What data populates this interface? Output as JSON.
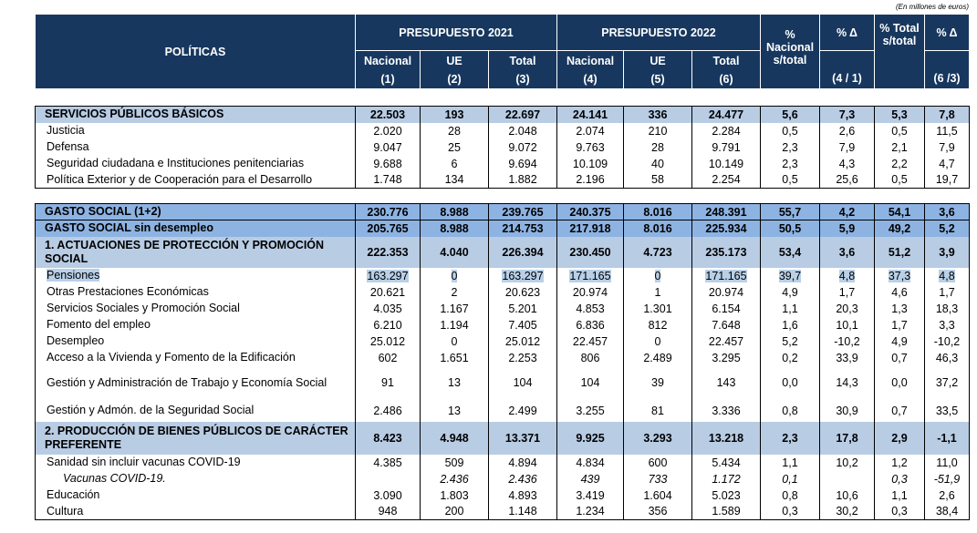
{
  "note": "(En millones de euros)",
  "header": {
    "politicas": "POLÍTICAS",
    "p2021": "PRESUPUESTO 2021",
    "p2022": "PRESUPUESTO 2022",
    "nac_total": "% Nacional s/total",
    "delta1": "% Δ",
    "tot_total": "% Total s/total",
    "delta2": "% Δ",
    "sub": [
      [
        "Nacional",
        "(1)"
      ],
      [
        "UE",
        "(2)"
      ],
      [
        "Total",
        "(3)"
      ],
      [
        "Nacional",
        "(4)"
      ],
      [
        "UE",
        "(5)"
      ],
      [
        "Total",
        "(6)"
      ],
      [
        "",
        "(4 / 1)"
      ],
      [
        "",
        "(6 /3)"
      ]
    ]
  },
  "blocks": [
    [
      [
        "SERVICIOS PÚBLICOS BÁSICOS",
        "22.503",
        "193",
        "22.697",
        "24.141",
        "336",
        "24.477",
        "5,6",
        "7,3",
        "5,3",
        "7,8"
      ],
      [
        "Justicia",
        "2.020",
        "28",
        "2.048",
        "2.074",
        "210",
        "2.284",
        "0,5",
        "2,6",
        "0,5",
        "11,5"
      ],
      [
        "Defensa",
        "9.047",
        "25",
        "9.072",
        "9.763",
        "28",
        "9.791",
        "2,3",
        "7,9",
        "2,1",
        "7,9"
      ],
      [
        "Seguridad ciudadana e Instituciones penitenciarias",
        "9.688",
        "6",
        "9.694",
        "10.109",
        "40",
        "10.149",
        "2,3",
        "4,3",
        "2,2",
        "4,7"
      ],
      [
        "Política Exterior y de Cooperación para el Desarrollo",
        "1.748",
        "134",
        "1.882",
        "2.196",
        "58",
        "2.254",
        "0,5",
        "25,6",
        "0,5",
        "19,7"
      ]
    ],
    [
      [
        "GASTO SOCIAL (1+2)",
        "230.776",
        "8.988",
        "239.765",
        "240.375",
        "8.016",
        "248.391",
        "55,7",
        "4,2",
        "54,1",
        "3,6"
      ],
      [
        "GASTO SOCIAL sin desempleo",
        "205.765",
        "8.988",
        "214.753",
        "217.918",
        "8.016",
        "225.934",
        "50,5",
        "5,9",
        "49,2",
        "5,2"
      ],
      [
        "1. ACTUACIONES DE PROTECCIÓN Y PROMOCIÓN SOCIAL",
        "222.353",
        "4.040",
        "226.394",
        "230.450",
        "4.723",
        "235.173",
        "53,4",
        "3,6",
        "51,2",
        "3,9"
      ],
      [
        "Pensiones",
        "163.297",
        "0",
        "163.297",
        "171.165",
        "0",
        "171.165",
        "39,7",
        "4,8",
        "37,3",
        "4,8"
      ],
      [
        "Otras Prestaciones Económicas",
        "20.621",
        "2",
        "20.623",
        "20.974",
        "1",
        "20.974",
        "4,9",
        "1,7",
        "4,6",
        "1,7"
      ],
      [
        "Servicios Sociales y Promoción Social",
        "4.035",
        "1.167",
        "5.201",
        "4.853",
        "1.301",
        "6.154",
        "1,1",
        "20,3",
        "1,3",
        "18,3"
      ],
      [
        "Fomento del empleo",
        "6.210",
        "1.194",
        "7.405",
        "6.836",
        "812",
        "7.648",
        "1,6",
        "10,1",
        "1,7",
        "3,3"
      ],
      [
        "Desempleo",
        "25.012",
        "0",
        "25.012",
        "22.457",
        "0",
        "22.457",
        "5,2",
        "-10,2",
        "4,9",
        "-10,2"
      ],
      [
        "Acceso a la Vivienda y Fomento de la Edificación",
        "602",
        "1.651",
        "2.253",
        "806",
        "2.489",
        "3.295",
        "0,2",
        "33,9",
        "0,7",
        "46,3"
      ],
      [
        "Gestión y Administración de Trabajo y Economía Social",
        "91",
        "13",
        "104",
        "104",
        "39",
        "143",
        "0,0",
        "14,3",
        "0,0",
        "37,2"
      ],
      [
        "Gestión y Admón. de la Seguridad Social",
        "2.486",
        "13",
        "2.499",
        "3.255",
        "81",
        "3.336",
        "0,8",
        "30,9",
        "0,7",
        "33,5"
      ],
      [
        "2. PRODUCCIÓN DE BIENES PÚBLICOS DE CARÁCTER PREFERENTE",
        "8.423",
        "4.948",
        "13.371",
        "9.925",
        "3.293",
        "13.218",
        "2,3",
        "17,8",
        "2,9",
        "-1,1"
      ],
      [
        "Sanidad sin incluir vacunas COVID-19",
        "4.385",
        "509",
        "4.894",
        "4.834",
        "600",
        "5.434",
        "1,1",
        "10,2",
        "1,2",
        "11,0"
      ],
      [
        "Vacunas COVID-19.",
        null,
        "2.436",
        "2.436",
        "439",
        "733",
        "1.172",
        "0,1",
        null,
        "0,3",
        "-51,9"
      ],
      [
        "Educación",
        "3.090",
        "1.803",
        "4.893",
        "3.419",
        "1.604",
        "5.023",
        "0,8",
        "10,6",
        "1,1",
        "2,6"
      ],
      [
        "Cultura",
        "948",
        "200",
        "1.148",
        "1.234",
        "356",
        "1.589",
        "0,3",
        "30,2",
        "0,3",
        "38,4"
      ]
    ]
  ]
}
